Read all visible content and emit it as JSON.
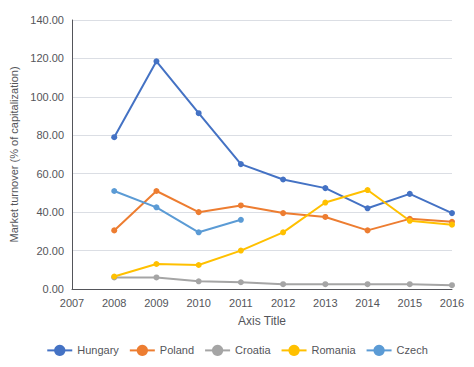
{
  "chart_data": {
    "type": "line",
    "xlabel": "Axis Title",
    "ylabel": "Market turnover (% of capitalization)",
    "x": [
      2008,
      2009,
      2010,
      2011,
      2012,
      2013,
      2014,
      2015,
      2016
    ],
    "series": [
      {
        "name": "Hungary",
        "color": "#4472C4",
        "values": [
          79.0,
          118.5,
          91.5,
          65.0,
          57.0,
          52.5,
          42.0,
          49.5,
          39.5
        ]
      },
      {
        "name": "Poland",
        "color": "#ED7D31",
        "values": [
          30.5,
          51.0,
          40.0,
          43.5,
          39.5,
          37.5,
          30.5,
          36.5,
          35.0
        ]
      },
      {
        "name": "Croatia",
        "color": "#A5A5A5",
        "values": [
          6.0,
          6.0,
          4.0,
          3.5,
          2.5,
          2.5,
          2.5,
          2.5,
          2.0
        ]
      },
      {
        "name": "Romania",
        "color": "#FFC000",
        "values": [
          6.5,
          13.0,
          12.5,
          20.0,
          29.5,
          45.0,
          51.5,
          35.5,
          33.5
        ]
      },
      {
        "name": "Czech",
        "color": "#5B9BD5",
        "values": [
          51.0,
          42.5,
          29.5,
          36.0,
          null,
          null,
          null,
          null,
          null
        ]
      }
    ],
    "marker": "circle",
    "xlim": [
      2007,
      2016
    ],
    "xticks": [
      2007,
      2008,
      2009,
      2010,
      2011,
      2012,
      2013,
      2014,
      2015,
      2016
    ],
    "ylim": [
      0,
      140
    ],
    "yticks": [
      {
        "value": 0,
        "label": "0.00"
      },
      {
        "value": 20,
        "label": "20.00"
      },
      {
        "value": 40,
        "label": "40.00"
      },
      {
        "value": 60,
        "label": "60.00"
      },
      {
        "value": 80,
        "label": "80.00"
      },
      {
        "value": 100,
        "label": "100.00"
      },
      {
        "value": 120,
        "label": "120.00"
      },
      {
        "value": 140,
        "label": "140.00"
      }
    ],
    "grid": true,
    "legend": "bottom"
  }
}
